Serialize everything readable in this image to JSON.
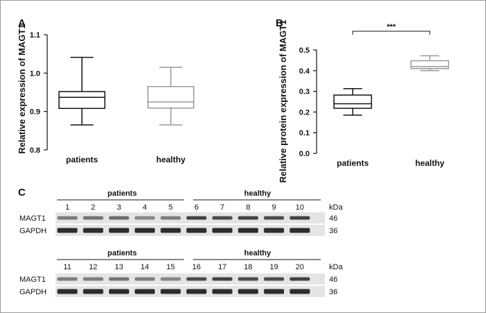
{
  "figure": {
    "border_color": "#999999"
  },
  "chart_data": [
    {
      "panel": "A",
      "type": "box",
      "xlabel": "",
      "ylabel": "Relative expression of MAGT1",
      "ylim": [
        0.8,
        1.1
      ],
      "yticks": [
        "0.8",
        "0.9",
        "1.0",
        "1.1"
      ],
      "categories": [
        "patients",
        "healthy"
      ],
      "series": [
        {
          "category": "patients",
          "min": 0.865,
          "q1": 0.908,
          "median": 0.937,
          "q3": 0.952,
          "max": 1.041,
          "color": "#111111"
        },
        {
          "category": "healthy",
          "min": 0.865,
          "q1": 0.909,
          "median": 0.925,
          "q3": 0.965,
          "max": 1.015,
          "color": "#999999"
        }
      ],
      "grid": false
    },
    {
      "panel": "B",
      "type": "box",
      "xlabel": "",
      "ylabel": "Relative protein expression of MAGT1",
      "ylim": [
        0.0,
        0.5
      ],
      "yticks": [
        "0.0",
        "0.1",
        "0.2",
        "0.3",
        "0.4",
        "0.5"
      ],
      "categories": [
        "patients",
        "healthy"
      ],
      "series": [
        {
          "category": "patients",
          "min": 0.185,
          "q1": 0.218,
          "median": 0.24,
          "q3": 0.282,
          "max": 0.313,
          "color": "#111111"
        },
        {
          "category": "healthy",
          "min": 0.4,
          "q1": 0.41,
          "median": 0.42,
          "q3": 0.448,
          "max": 0.472,
          "color": "#999999"
        }
      ],
      "significance": "***",
      "grid": false
    }
  ],
  "blots": {
    "panel": "C",
    "kda_label": "kDa",
    "rows": [
      {
        "patients_label": "patients",
        "healthy_label": "healthy",
        "lanes": [
          "1",
          "2",
          "3",
          "4",
          "5",
          "6",
          "7",
          "8",
          "9",
          "10"
        ],
        "bands": [
          {
            "name": "MAGT1",
            "kda": "46",
            "intensity": [
              0.55,
              0.6,
              0.65,
              0.5,
              0.55,
              0.85,
              0.8,
              0.85,
              0.8,
              0.85
            ]
          },
          {
            "name": "GAPDH",
            "kda": "36",
            "intensity": [
              0.95,
              0.95,
              0.95,
              0.95,
              0.95,
              0.95,
              0.95,
              0.95,
              0.95,
              0.95
            ]
          }
        ]
      },
      {
        "patients_label": "patients",
        "healthy_label": "healthy",
        "lanes": [
          "11",
          "12",
          "13",
          "14",
          "15",
          "16",
          "17",
          "18",
          "19",
          "20"
        ],
        "bands": [
          {
            "name": "MAGT1",
            "kda": "46",
            "intensity": [
              0.55,
              0.55,
              0.6,
              0.55,
              0.5,
              0.8,
              0.85,
              0.8,
              0.8,
              0.85
            ]
          },
          {
            "name": "GAPDH",
            "kda": "36",
            "intensity": [
              0.95,
              0.95,
              0.95,
              0.95,
              0.95,
              0.95,
              0.95,
              0.95,
              0.95,
              0.95
            ]
          }
        ]
      }
    ]
  }
}
